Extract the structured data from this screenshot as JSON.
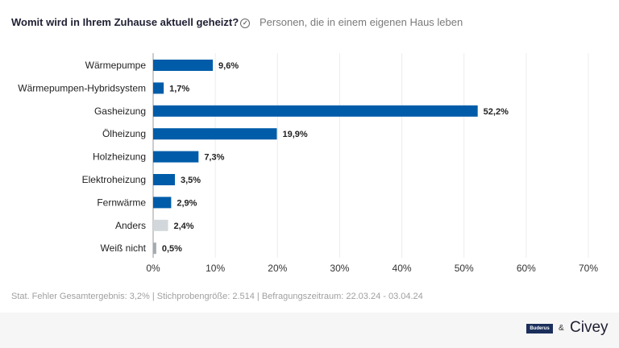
{
  "header": {
    "title": "Womit wird in Ihrem Zuhause aktuell geheizt?",
    "subtitle": "Personen, die in einem eigenen Haus leben"
  },
  "chart_data": {
    "type": "bar",
    "orientation": "horizontal",
    "categories": [
      "Wärmepumpe",
      "Wärmepumpen-Hybridsystem",
      "Gasheizung",
      "Ölheizung",
      "Holzheizung",
      "Elektroheizung",
      "Fernwärme",
      "Anders",
      "Weiß nicht"
    ],
    "values": [
      9.6,
      1.7,
      52.2,
      19.9,
      7.3,
      3.5,
      2.9,
      2.4,
      0.5
    ],
    "data_labels": [
      "9,6%",
      "1,7%",
      "52,2%",
      "19,9%",
      "7,3%",
      "3,5%",
      "2,9%",
      "2,4%",
      "0,5%"
    ],
    "colors": [
      "#005ca9",
      "#005ca9",
      "#005ca9",
      "#005ca9",
      "#005ca9",
      "#005ca9",
      "#005ca9",
      "#d2d7db",
      "#a3abb1"
    ],
    "xlim": [
      0,
      70
    ],
    "ticks": [
      "0%",
      "10%",
      "20%",
      "30%",
      "40%",
      "50%",
      "60%",
      "70%"
    ],
    "grid": true
  },
  "footer": {
    "note": "Stat. Fehler Gesamtergebnis: 3,2% | Stichprobengröße: 2.514 | Befragungszeitraum: 22.03.24 - 03.04.24",
    "brand1": "Buderus",
    "amp": "&",
    "brand2": "Civey"
  }
}
